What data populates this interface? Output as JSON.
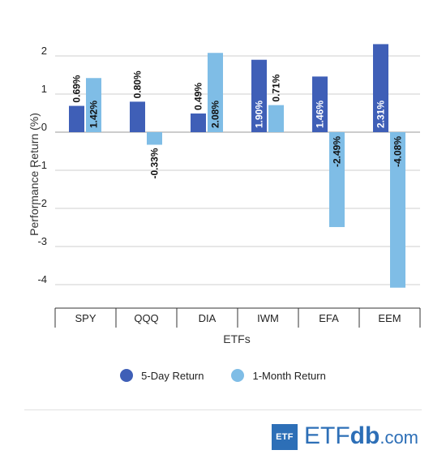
{
  "chart_data": {
    "type": "bar",
    "xlabel": "ETFs",
    "ylabel": "Performance Return (%)",
    "categories": [
      "SPY",
      "QQQ",
      "DIA",
      "IWM",
      "EFA",
      "EEM"
    ],
    "ylim": [
      -4.5,
      2.5
    ],
    "yticks": [
      2,
      1,
      0,
      -1,
      -2,
      -3,
      -4
    ],
    "ytick_labels": [
      "2",
      "1",
      "0",
      "-1",
      "-2",
      "-3",
      "-4"
    ],
    "grid": true,
    "legend_position": "bottom",
    "series": [
      {
        "name": "5-Day Return",
        "color": "#3f5fb7",
        "values": [
          0.69,
          0.8,
          0.49,
          1.9,
          1.46,
          2.31
        ],
        "labels": [
          "0.69%",
          "0.80%",
          "0.49%",
          "1.90%",
          "1.46%",
          "2.31%"
        ]
      },
      {
        "name": "1-Month Return",
        "color": "#7fbde6",
        "values": [
          1.42,
          -0.33,
          2.08,
          0.71,
          -2.49,
          -4.08
        ],
        "labels": [
          "1.42%",
          "-0.33%",
          "2.08%",
          "0.71%",
          "-2.49%",
          "-4.08%"
        ]
      }
    ]
  },
  "legend": {
    "items": [
      {
        "label": "5-Day Return",
        "color": "#3f5fb7"
      },
      {
        "label": "1-Month Return",
        "color": "#7fbde6"
      }
    ]
  },
  "brand": {
    "box_text": "ETF",
    "etf": "ETF",
    "db": "db",
    "com": ".com",
    "color": "#2d6fb7"
  }
}
